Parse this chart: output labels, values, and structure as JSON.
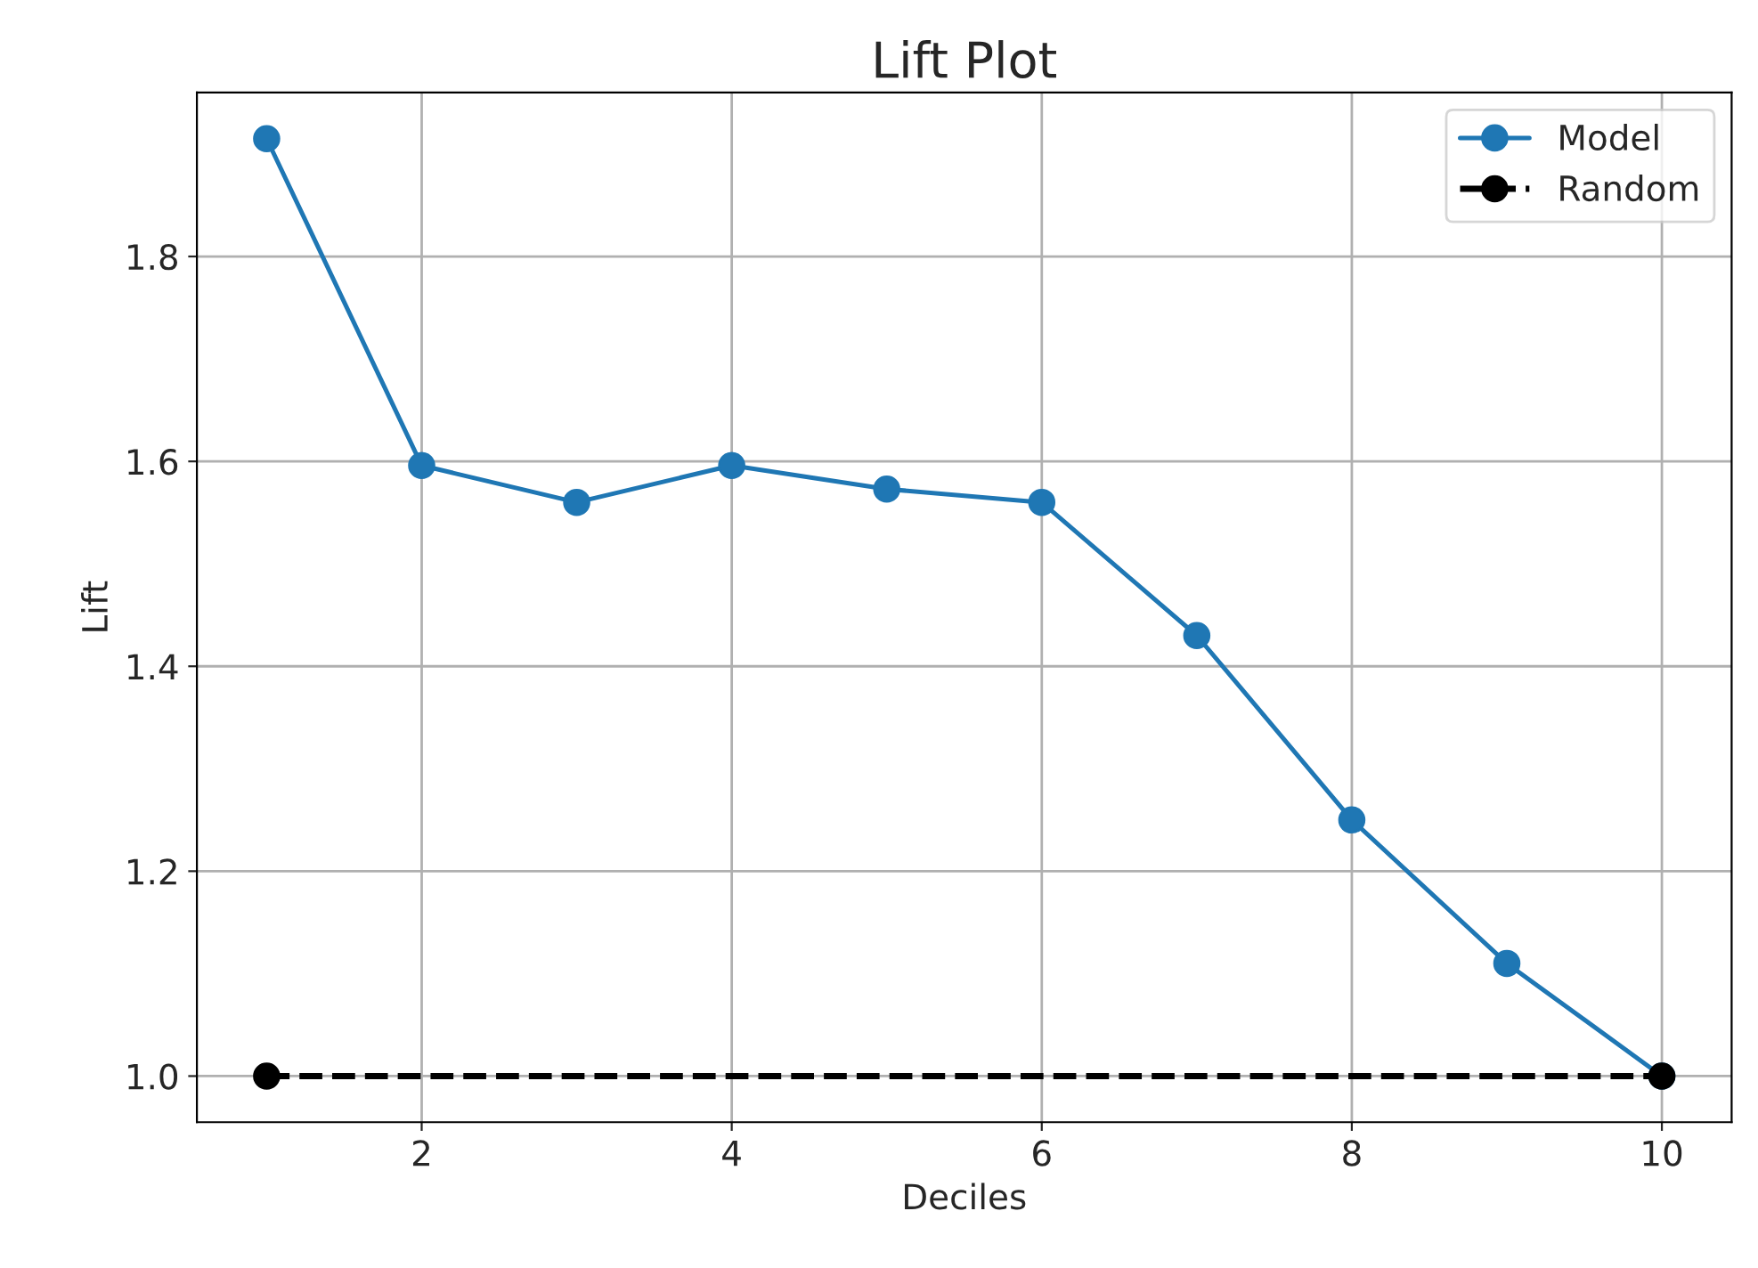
{
  "chart_data": {
    "type": "line",
    "title": "Lift Plot",
    "xlabel": "Deciles",
    "ylabel": "Lift",
    "series": [
      {
        "name": "Model",
        "color": "#1f77b4",
        "x": [
          1,
          2,
          3,
          4,
          5,
          6,
          7,
          8,
          9,
          10
        ],
        "values": [
          1.915,
          1.596,
          1.56,
          1.596,
          1.573,
          1.56,
          1.43,
          1.25,
          1.11,
          1.0
        ],
        "line_style": "solid",
        "marker": "circle"
      },
      {
        "name": "Random",
        "color": "#000000",
        "x": [
          1,
          10
        ],
        "values": [
          1.0,
          1.0
        ],
        "line_style": "dashed",
        "marker": "circle"
      }
    ],
    "xlim": [
      0.55,
      10.45
    ],
    "ylim": [
      0.955,
      1.96
    ],
    "xticks": [
      2,
      4,
      6,
      8,
      10
    ],
    "yticks": [
      {
        "value": 1,
        "label": "1.0"
      },
      1.2,
      1.4,
      1.6,
      1.8
    ],
    "grid": true,
    "legend": "top right"
  }
}
